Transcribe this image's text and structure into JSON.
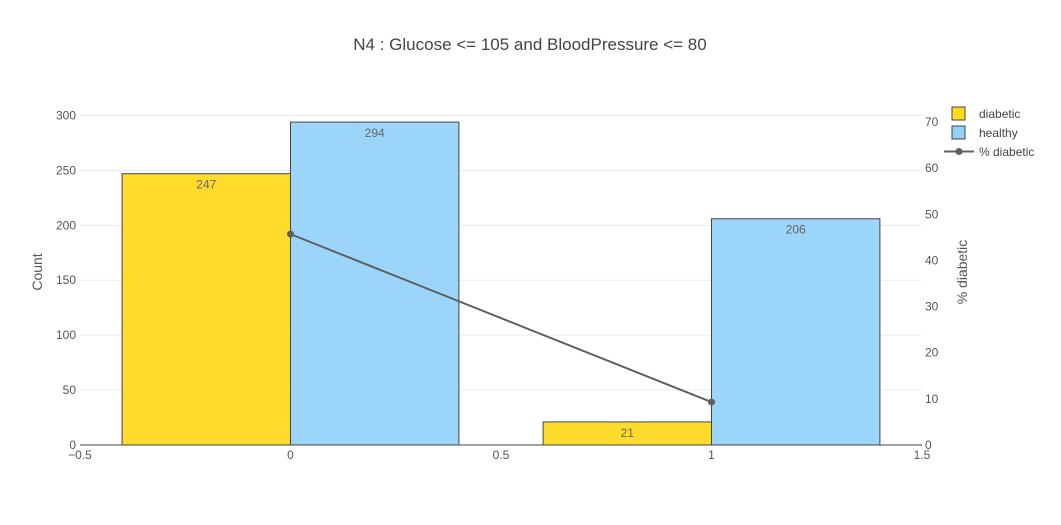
{
  "chart_data": {
    "type": "bar",
    "title": "N4 : Glucose <= 105 and BloodPressure <= 80",
    "ylabel": "Count",
    "y2label": "% diabetic",
    "x_ticks": [
      "−0.5",
      "0",
      "0.5",
      "1",
      "1.5"
    ],
    "xlim": [
      -0.5,
      1.5
    ],
    "ylim": [
      0,
      305
    ],
    "y_ticks": [
      0,
      50,
      100,
      150,
      200,
      250,
      300
    ],
    "y2lim": [
      0,
      72.6
    ],
    "y2_ticks": [
      0,
      10,
      20,
      30,
      40,
      50,
      60,
      70
    ],
    "categories": [
      0,
      1
    ],
    "series": [
      {
        "name": "diabetic",
        "kind": "bar",
        "color": "#ffd91a",
        "values": [
          247,
          21
        ],
        "labels": [
          "247",
          "21"
        ]
      },
      {
        "name": "healthy",
        "kind": "bar",
        "color": "#93d1f8",
        "values": [
          294,
          206
        ],
        "labels": [
          "294",
          "206"
        ]
      },
      {
        "name": "% diabetic",
        "kind": "line",
        "axis": "y2",
        "color": "#606060",
        "x": [
          0,
          1
        ],
        "values": [
          45.7,
          9.3
        ]
      }
    ],
    "grid": true,
    "legend_position": "top-right"
  }
}
